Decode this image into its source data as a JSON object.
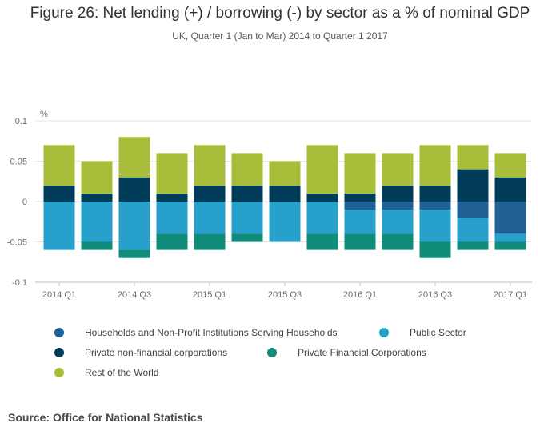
{
  "title": "Figure 26: Net lending (+) / borrowing (-) by sector as a % of nominal GDP",
  "subtitle": "UK, Quarter 1 (Jan to Mar) 2014 to Quarter 1 2017",
  "source": "Source: Office for National Statistics",
  "y_unit": "%",
  "chart_data": {
    "type": "bar",
    "stacked": true,
    "categories": [
      "2014 Q1",
      "2014 Q2",
      "2014 Q3",
      "2014 Q4",
      "2015 Q1",
      "2015 Q2",
      "2015 Q3",
      "2015 Q4",
      "2016 Q1",
      "2016 Q2",
      "2016 Q3",
      "2016 Q4",
      "2017 Q1"
    ],
    "x_tick_labels": [
      "2014 Q1",
      "",
      "2014 Q3",
      "",
      "2015 Q1",
      "",
      "2015 Q3",
      "",
      "2016 Q1",
      "",
      "2016 Q3",
      "",
      "2017 Q1"
    ],
    "y_ticks": [
      "0.1",
      "0.05",
      "0",
      "-0.05",
      "-0.1"
    ],
    "ylim": [
      -0.1,
      0.1
    ],
    "grid": true,
    "legend_position": "bottom",
    "series": [
      {
        "name": "Households and Non-Profit Institutions Serving Households",
        "color": "#206095",
        "values": [
          0,
          0,
          0,
          0,
          0,
          0,
          0,
          0,
          -0.01,
          -0.01,
          -0.01,
          -0.02,
          -0.04
        ]
      },
      {
        "name": "Public Sector",
        "color": "#27a0cc",
        "values": [
          -0.06,
          -0.05,
          -0.06,
          -0.04,
          -0.04,
          -0.04,
          -0.05,
          -0.04,
          -0.03,
          -0.03,
          -0.04,
          -0.03,
          -0.01
        ]
      },
      {
        "name": "Private non-financial corporations",
        "color": "#003c57",
        "values": [
          0.02,
          0.01,
          0.03,
          0.01,
          0.02,
          0.02,
          0.02,
          0.01,
          0.01,
          0.02,
          0.02,
          0.04,
          0.03
        ]
      },
      {
        "name": "Private Financial Corporations",
        "color": "#118c7b",
        "values": [
          0,
          -0.01,
          -0.01,
          -0.02,
          -0.02,
          -0.01,
          0,
          -0.02,
          -0.02,
          -0.02,
          -0.02,
          -0.01,
          -0.01
        ]
      },
      {
        "name": "Rest of the World",
        "color": "#a8bd3a",
        "values": [
          0.05,
          0.04,
          0.05,
          0.05,
          0.05,
          0.04,
          0.03,
          0.06,
          0.05,
          0.04,
          0.05,
          0.03,
          0.03
        ]
      }
    ]
  }
}
